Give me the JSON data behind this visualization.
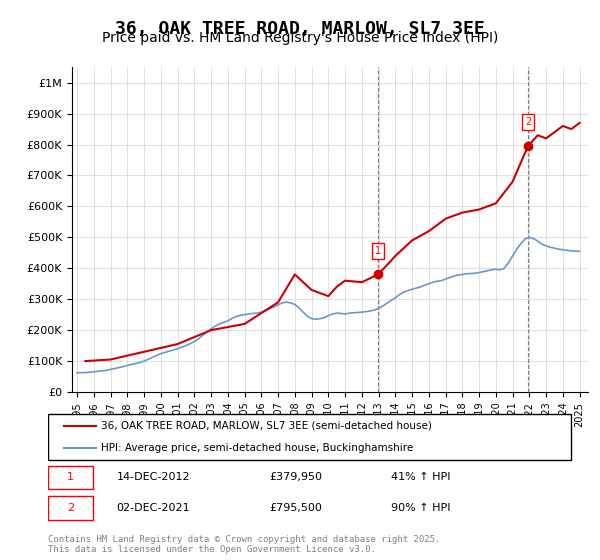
{
  "title": "36, OAK TREE ROAD, MARLOW, SL7 3EE",
  "subtitle": "Price paid vs. HM Land Registry's House Price Index (HPI)",
  "title_fontsize": 13,
  "subtitle_fontsize": 10,
  "ylabel_ticks": [
    "£0",
    "£100K",
    "£200K",
    "£300K",
    "£400K",
    "£500K",
    "£600K",
    "£700K",
    "£800K",
    "£900K",
    "£1M"
  ],
  "ytick_values": [
    0,
    100000,
    200000,
    300000,
    400000,
    500000,
    600000,
    700000,
    800000,
    900000,
    1000000
  ],
  "ylim": [
    0,
    1050000
  ],
  "xlim_start": 1995.0,
  "xlim_end": 2025.5,
  "line1_color": "#cc0000",
  "line2_color": "#6699cc",
  "marker1_date": 2012.96,
  "marker1_value": 379950,
  "marker1_label": "1",
  "marker1_text": "14-DEC-2012",
  "marker1_price": "£379,950",
  "marker1_hpi": "41% ↑ HPI",
  "marker2_date": 2021.92,
  "marker2_value": 795500,
  "marker2_label": "2",
  "marker2_text": "02-DEC-2021",
  "marker2_price": "£795,500",
  "marker2_hpi": "90% ↑ HPI",
  "legend_line1": "36, OAK TREE ROAD, MARLOW, SL7 3EE (semi-detached house)",
  "legend_line2": "HPI: Average price, semi-detached house, Buckinghamshire",
  "footer": "Contains HM Land Registry data © Crown copyright and database right 2025.\nThis data is licensed under the Open Government Licence v3.0.",
  "hpi_years": [
    1995.0,
    1995.25,
    1995.5,
    1995.75,
    1996.0,
    1996.25,
    1996.5,
    1996.75,
    1997.0,
    1997.25,
    1997.5,
    1997.75,
    1998.0,
    1998.25,
    1998.5,
    1998.75,
    1999.0,
    1999.25,
    1999.5,
    1999.75,
    2000.0,
    2000.25,
    2000.5,
    2000.75,
    2001.0,
    2001.25,
    2001.5,
    2001.75,
    2002.0,
    2002.25,
    2002.5,
    2002.75,
    2003.0,
    2003.25,
    2003.5,
    2003.75,
    2004.0,
    2004.25,
    2004.5,
    2004.75,
    2005.0,
    2005.25,
    2005.5,
    2005.75,
    2006.0,
    2006.25,
    2006.5,
    2006.75,
    2007.0,
    2007.25,
    2007.5,
    2007.75,
    2008.0,
    2008.25,
    2008.5,
    2008.75,
    2009.0,
    2009.25,
    2009.5,
    2009.75,
    2010.0,
    2010.25,
    2010.5,
    2010.75,
    2011.0,
    2011.25,
    2011.5,
    2011.75,
    2012.0,
    2012.25,
    2012.5,
    2012.75,
    2013.0,
    2013.25,
    2013.5,
    2013.75,
    2014.0,
    2014.25,
    2014.5,
    2014.75,
    2015.0,
    2015.25,
    2015.5,
    2015.75,
    2016.0,
    2016.25,
    2016.5,
    2016.75,
    2017.0,
    2017.25,
    2017.5,
    2017.75,
    2018.0,
    2018.25,
    2018.5,
    2018.75,
    2019.0,
    2019.25,
    2019.5,
    2019.75,
    2020.0,
    2020.25,
    2020.5,
    2020.75,
    2021.0,
    2021.25,
    2021.5,
    2021.75,
    2022.0,
    2022.25,
    2022.5,
    2022.75,
    2023.0,
    2023.25,
    2023.5,
    2023.75,
    2024.0,
    2024.25,
    2024.5,
    2024.75,
    2025.0
  ],
  "hpi_values": [
    62000,
    62500,
    63000,
    64000,
    65500,
    67000,
    68500,
    70000,
    73000,
    76000,
    79000,
    82000,
    86000,
    89000,
    92000,
    95000,
    100000,
    106000,
    112000,
    118000,
    124000,
    128000,
    132000,
    136000,
    140000,
    145000,
    150000,
    156000,
    163000,
    172000,
    183000,
    194000,
    204000,
    213000,
    220000,
    225000,
    230000,
    238000,
    244000,
    248000,
    250000,
    252000,
    254000,
    255000,
    258000,
    263000,
    269000,
    275000,
    282000,
    288000,
    291000,
    288000,
    283000,
    272000,
    258000,
    245000,
    237000,
    235000,
    237000,
    240000,
    247000,
    252000,
    255000,
    254000,
    252000,
    255000,
    256000,
    257000,
    258000,
    260000,
    262000,
    265000,
    270000,
    278000,
    287000,
    296000,
    305000,
    315000,
    323000,
    328000,
    332000,
    336000,
    340000,
    345000,
    350000,
    355000,
    358000,
    360000,
    365000,
    370000,
    375000,
    378000,
    380000,
    382000,
    383000,
    384000,
    386000,
    389000,
    392000,
    395000,
    397000,
    395000,
    400000,
    418000,
    440000,
    462000,
    480000,
    495000,
    500000,
    496000,
    488000,
    478000,
    472000,
    468000,
    465000,
    462000,
    460000,
    458000,
    456000,
    455000,
    455000
  ],
  "prop_years": [
    1995.5,
    1997.0,
    1999.0,
    2001.0,
    2003.0,
    2005.0,
    2007.0,
    2008.0,
    2009.0,
    2010.0,
    2010.5,
    2011.0,
    2012.0,
    2012.96,
    2013.5,
    2014.0,
    2015.0,
    2016.0,
    2017.0,
    2018.0,
    2019.0,
    2020.0,
    2021.0,
    2021.92,
    2022.0,
    2022.5,
    2023.0,
    2023.5,
    2024.0,
    2024.5,
    2025.0
  ],
  "prop_values": [
    100000,
    105000,
    130000,
    155000,
    200000,
    220000,
    290000,
    380000,
    330000,
    310000,
    340000,
    360000,
    355000,
    379950,
    410000,
    440000,
    490000,
    520000,
    560000,
    580000,
    590000,
    610000,
    680000,
    795500,
    800000,
    830000,
    820000,
    840000,
    860000,
    850000,
    870000
  ]
}
